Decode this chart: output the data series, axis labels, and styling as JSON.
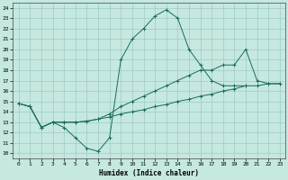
{
  "xlabel": "Humidex (Indice chaleur)",
  "bg_color": "#c5e8e0",
  "grid_color": "#9dccc4",
  "line_color": "#1a6b60",
  "xlim": [
    -0.5,
    23.5
  ],
  "ylim": [
    9.5,
    24.5
  ],
  "xticks": [
    0,
    1,
    2,
    3,
    4,
    5,
    6,
    7,
    8,
    9,
    10,
    11,
    12,
    13,
    14,
    15,
    16,
    17,
    18,
    19,
    20,
    21,
    22,
    23
  ],
  "yticks": [
    10,
    11,
    12,
    13,
    14,
    15,
    16,
    17,
    18,
    19,
    20,
    21,
    22,
    23,
    24
  ],
  "line1_x": [
    0,
    1,
    2,
    3,
    4,
    5,
    6,
    7,
    8,
    9,
    10,
    11,
    12,
    13,
    14,
    15,
    16,
    17,
    18,
    19,
    20
  ],
  "line1_y": [
    14.8,
    14.5,
    12.5,
    13.0,
    12.5,
    11.5,
    10.5,
    10.2,
    11.5,
    19.0,
    21.0,
    22.0,
    23.2,
    23.8,
    23.0,
    20.0,
    18.5,
    17.0,
    16.5,
    16.5,
    16.5
  ],
  "line2_x": [
    0,
    1,
    2,
    3,
    4,
    5,
    6,
    7,
    8,
    9,
    10,
    11,
    12,
    13,
    14,
    15,
    16,
    17,
    18,
    19,
    20,
    21,
    22,
    23
  ],
  "line2_y": [
    14.8,
    14.5,
    12.5,
    13.0,
    13.0,
    13.0,
    13.1,
    13.3,
    13.5,
    13.8,
    14.0,
    14.2,
    14.5,
    14.7,
    15.0,
    15.2,
    15.5,
    15.7,
    16.0,
    16.2,
    16.5,
    16.5,
    16.7,
    16.7
  ],
  "line3_x": [
    0,
    1,
    2,
    3,
    4,
    5,
    6,
    7,
    8,
    9,
    10,
    11,
    12,
    13,
    14,
    15,
    16,
    17,
    18,
    19,
    20,
    21,
    22,
    23
  ],
  "line3_y": [
    14.8,
    14.5,
    12.5,
    13.0,
    13.0,
    13.0,
    13.1,
    13.3,
    13.8,
    14.5,
    15.0,
    15.5,
    16.0,
    16.5,
    17.0,
    17.5,
    18.0,
    18.0,
    18.5,
    18.5,
    20.0,
    17.0,
    16.7,
    16.7
  ]
}
